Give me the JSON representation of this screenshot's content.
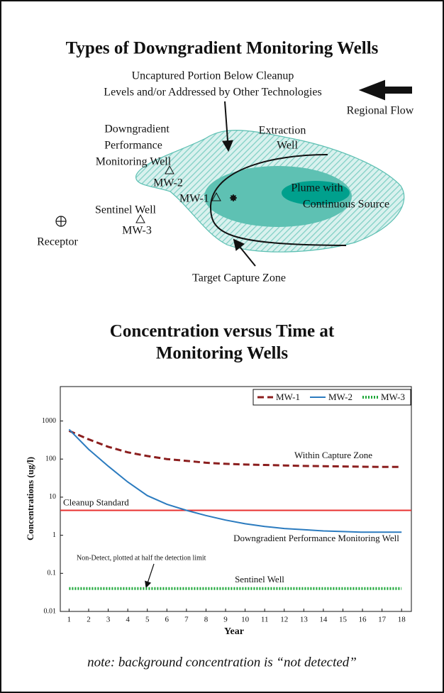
{
  "diagram": {
    "title": "Types of Downgradient Monitoring Wells",
    "uncaptured_label": [
      "Uncaptured Portion Below Cleanup",
      "Levels and/or Addressed by Other Technologies"
    ],
    "regional_flow": "Regional Flow",
    "performance_well": [
      "Downgradient",
      "Performance",
      "Monitoring Well"
    ],
    "extraction_well": [
      "Extraction",
      "Well"
    ],
    "plume": [
      "Plume with",
      "Continuous Source"
    ],
    "sentinel_well": "Sentinel Well",
    "wells": {
      "mw1": "MW-1",
      "mw2": "MW-2",
      "mw3": "MW-3"
    },
    "receptor": "Receptor",
    "capture_zone": "Target Capture Zone"
  },
  "chart_data": {
    "type": "line",
    "title": [
      "Concentration versus Time at",
      "Monitoring Wells"
    ],
    "x_label": "Year",
    "y_label": "Concentrations (ug/l)",
    "x": [
      1,
      2,
      3,
      4,
      5,
      6,
      7,
      8,
      9,
      10,
      11,
      12,
      13,
      14,
      15,
      16,
      17,
      18
    ],
    "xlim": [
      0.55,
      18.5
    ],
    "xticks": [
      1,
      2,
      3,
      4,
      5,
      6,
      7,
      8,
      9,
      10,
      11,
      12,
      13,
      14,
      15,
      16,
      17,
      18
    ],
    "ylim": [
      0.01,
      8000
    ],
    "yticks": [
      0.01,
      0.1,
      1,
      10,
      100,
      1000
    ],
    "log_y": true,
    "legend": "top-right",
    "series": [
      {
        "name": "MW-1",
        "color": "#8b1e1e",
        "style": "dashed",
        "values": [
          550,
          330,
          210,
          150,
          120,
          100,
          90,
          80,
          75,
          72,
          70,
          68,
          66,
          65,
          64,
          63,
          62,
          62
        ]
      },
      {
        "name": "MW-2",
        "color": "#2b7bbf",
        "style": "solid",
        "values": [
          600,
          180,
          65,
          25,
          11,
          6.5,
          4.5,
          3.3,
          2.5,
          2,
          1.7,
          1.5,
          1.4,
          1.3,
          1.25,
          1.2,
          1.2,
          1.2
        ]
      },
      {
        "name": "MW-3",
        "color": "#1fa83a",
        "style": "dotted",
        "values": [
          0.04,
          0.04,
          0.04,
          0.04,
          0.04,
          0.04,
          0.04,
          0.04,
          0.04,
          0.04,
          0.04,
          0.04,
          0.04,
          0.04,
          0.04,
          0.04,
          0.04,
          0.04
        ]
      }
    ],
    "reference_line": {
      "label": "Cleanup Standard",
      "value": 4.5,
      "color": "#e8302f"
    },
    "annotations": {
      "capture": "Within Capture Zone",
      "performance": "Downgradient Performance Monitoring Well",
      "sentinel": "Sentinel Well",
      "non_detect": "Non-Detect, plotted at half the detection limit"
    }
  },
  "note": "note: background concentration is “not detected”"
}
